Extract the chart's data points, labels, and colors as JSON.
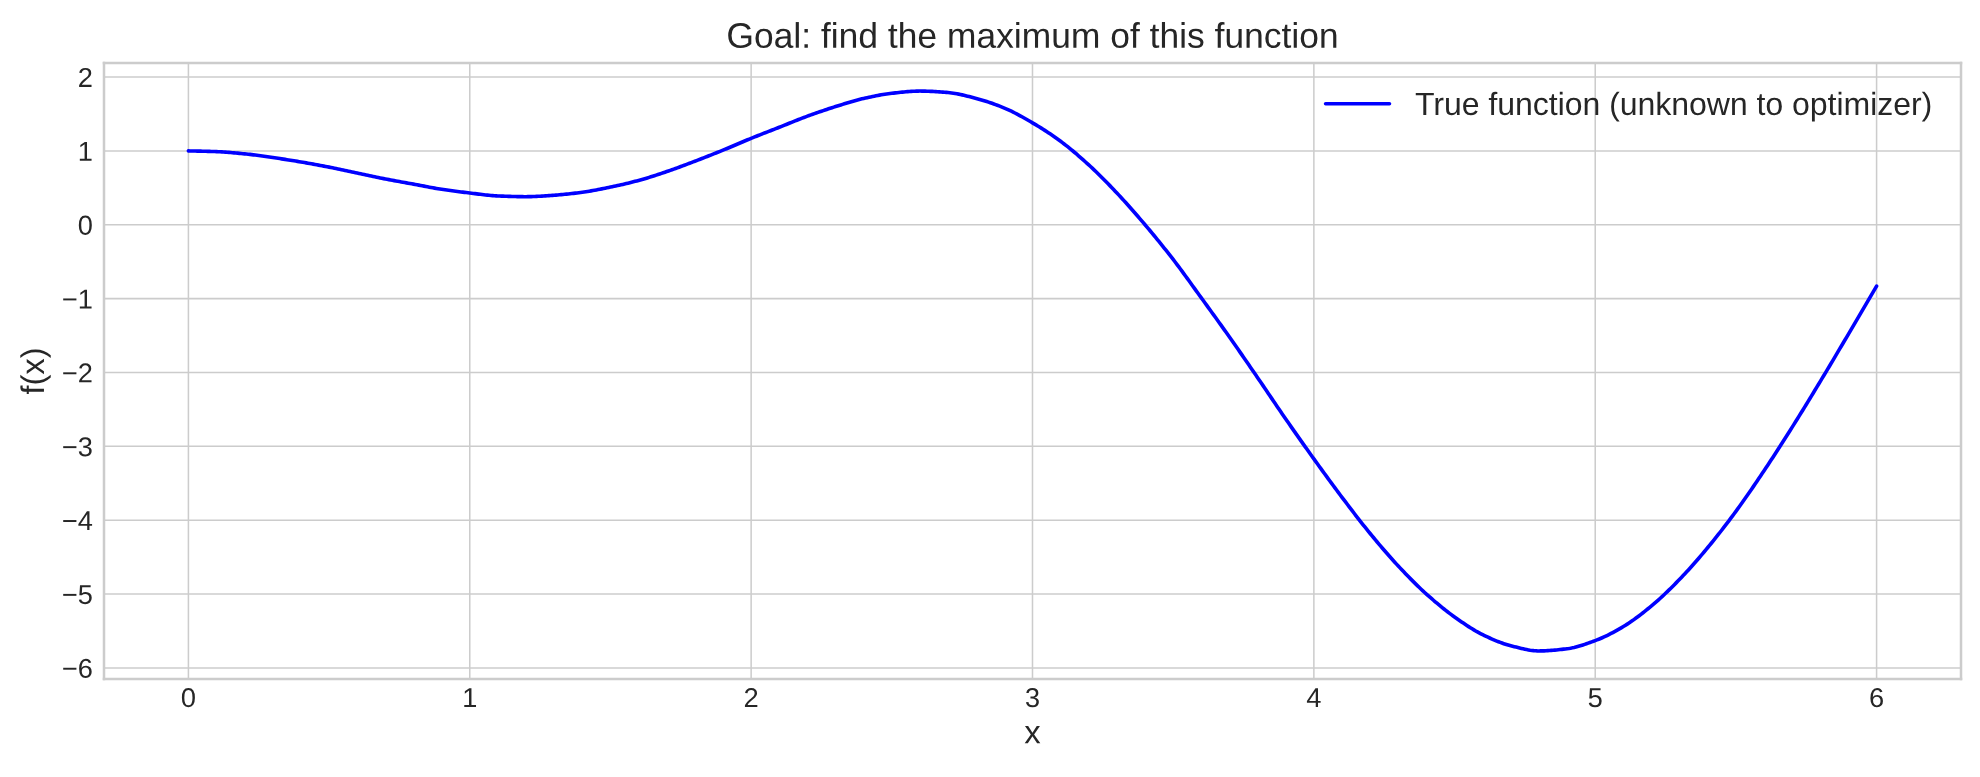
{
  "chart_data": {
    "type": "line",
    "title": "Goal: find the maximum of this function",
    "xlabel": "x",
    "ylabel": "f(x)",
    "x": [
      0.0,
      0.1,
      0.2,
      0.3,
      0.4,
      0.5,
      0.6,
      0.7,
      0.8,
      0.9,
      1.0,
      1.1,
      1.2,
      1.3,
      1.4,
      1.5,
      1.6,
      1.7,
      1.8,
      1.9,
      2.0,
      2.1,
      2.2,
      2.3,
      2.4,
      2.5,
      2.6,
      2.7,
      2.8,
      2.9,
      3.0,
      3.1,
      3.2,
      3.3,
      3.4,
      3.5,
      3.6,
      3.7,
      3.8,
      3.9,
      4.0,
      4.1,
      4.2,
      4.3,
      4.4,
      4.5,
      4.6,
      4.7,
      4.8,
      4.9,
      5.0,
      5.1,
      5.2,
      5.3,
      5.4,
      5.5,
      5.6,
      5.7,
      5.8,
      5.9,
      6.0
    ],
    "series": [
      {
        "name": "True function (unknown to optimizer)",
        "color": "#0000ff",
        "values": [
          1.0,
          0.99,
          0.96,
          0.91,
          0.85,
          0.78,
          0.7,
          0.62,
          0.55,
          0.48,
          0.43,
          0.39,
          0.38,
          0.4,
          0.44,
          0.51,
          0.6,
          0.72,
          0.86,
          1.01,
          1.17,
          1.32,
          1.47,
          1.6,
          1.71,
          1.78,
          1.81,
          1.79,
          1.71,
          1.58,
          1.38,
          1.13,
          0.81,
          0.43,
          0.0,
          -0.47,
          -0.99,
          -1.52,
          -2.07,
          -2.63,
          -3.17,
          -3.69,
          -4.18,
          -4.62,
          -5.0,
          -5.31,
          -5.55,
          -5.7,
          -5.77,
          -5.74,
          -5.63,
          -5.44,
          -5.16,
          -4.8,
          -4.37,
          -3.88,
          -3.33,
          -2.74,
          -2.12,
          -1.48,
          -0.83
        ]
      }
    ],
    "xlim": [
      -0.3,
      6.3
    ],
    "ylim": [
      -6.15,
      2.19
    ],
    "xticks": [
      0,
      1,
      2,
      3,
      4,
      5,
      6
    ],
    "yticks": [
      {
        "value": -6,
        "label": "−6"
      },
      {
        "value": -5,
        "label": "−5"
      },
      {
        "value": -4,
        "label": "−4"
      },
      {
        "value": -3,
        "label": "−3"
      },
      {
        "value": -2,
        "label": "−2"
      },
      {
        "value": -1,
        "label": "−1"
      },
      0,
      1,
      2
    ],
    "grid": true,
    "legend": "top right",
    "line_style": "solid"
  }
}
